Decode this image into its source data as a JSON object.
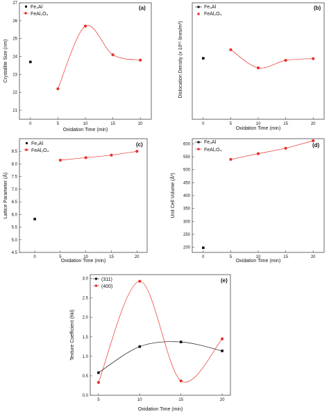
{
  "colors": {
    "black_series": "#111111",
    "red_series": "#e8302a",
    "frame": "#444444"
  },
  "chart_data": [
    {
      "panel": "(a)",
      "type": "scatter",
      "xlabel": "Oxidation Time (min)",
      "ylabel": "Crystallite Size (nm)",
      "xlim": [
        -2,
        22
      ],
      "ylim": [
        20.5,
        27
      ],
      "xticks": [
        0,
        5,
        10,
        15,
        20
      ],
      "yticks": [
        21,
        22,
        23,
        24,
        25,
        26,
        27
      ],
      "series": [
        {
          "name": "Fe₃Al",
          "color": "#111111",
          "marker": "square",
          "smooth": false,
          "x": [
            0
          ],
          "y": [
            23.7
          ]
        },
        {
          "name": "FeAl₂O₄",
          "color": "#e8302a",
          "marker": "circle",
          "smooth": true,
          "x": [
            5,
            10,
            15,
            20
          ],
          "y": [
            22.2,
            25.7,
            24.1,
            23.8
          ]
        }
      ],
      "legend": "top-left"
    },
    {
      "panel": "(b)",
      "type": "scatter",
      "xlabel": "Oxidation Time (min)",
      "ylabel": "Dislocation Density (x 10¹⁵ lines/m²)",
      "xlim": [
        -2,
        22
      ],
      "ylim": [
        0,
        3.4
      ],
      "xticks": [
        0,
        5,
        10,
        15,
        20
      ],
      "yticks": [],
      "series": [
        {
          "name": "Fe₃Al",
          "color": "#111111",
          "marker": "square",
          "smooth": false,
          "x": [
            0
          ],
          "y": [
            1.78
          ]
        },
        {
          "name": "FeAl₂O₄",
          "color": "#e8302a",
          "marker": "circle",
          "smooth": true,
          "x": [
            5,
            10,
            15,
            20
          ],
          "y": [
            2.03,
            1.5,
            1.72,
            1.77
          ]
        }
      ],
      "legend": "top-left"
    },
    {
      "panel": "(c)",
      "type": "scatter",
      "xlabel": "Oxidation Time (min)",
      "ylabel": "Lattice Parameter (Å)",
      "xlim": [
        -3,
        22
      ],
      "ylim": [
        4.5,
        9
      ],
      "xticks": [
        0,
        5,
        10,
        15,
        20
      ],
      "yticks": [
        4.5,
        5.0,
        5.5,
        6.0,
        6.5,
        7.0,
        7.5,
        8.0,
        8.5
      ],
      "series": [
        {
          "name": "Fe₃Al",
          "color": "#111111",
          "marker": "square",
          "smooth": false,
          "x": [
            0
          ],
          "y": [
            5.82
          ]
        },
        {
          "name": "FeAl₂O₄",
          "color": "#e8302a",
          "marker": "circle",
          "smooth": true,
          "x": [
            5,
            10,
            15,
            20
          ],
          "y": [
            8.15,
            8.25,
            8.35,
            8.5
          ]
        }
      ],
      "legend": "top-left"
    },
    {
      "panel": "(d)",
      "type": "line",
      "xlabel": "Oxidation Time (min)",
      "ylabel": "Unit Cell Volume (Å³)",
      "xlim": [
        -2,
        22
      ],
      "ylim": [
        180,
        620
      ],
      "xticks": [
        0,
        5,
        10,
        15,
        20
      ],
      "yticks": [
        200,
        250,
        300,
        350,
        400,
        450,
        500,
        550,
        600
      ],
      "series": [
        {
          "name": "Fe₃Al",
          "color": "#111111",
          "marker": "square",
          "smooth": false,
          "x": [
            0
          ],
          "y": [
            198
          ]
        },
        {
          "name": "FeAl₂O₄",
          "color": "#e8302a",
          "marker": "circle",
          "smooth": false,
          "x": [
            5,
            10,
            15,
            20
          ],
          "y": [
            540,
            562,
            583,
            612
          ]
        }
      ],
      "legend": "top-left"
    },
    {
      "panel": "(e)",
      "type": "scatter",
      "xlabel": "Oxidation Time (min)",
      "ylabel": "Texture Coefficient (hkl)",
      "xlim": [
        4,
        21
      ],
      "ylim": [
        0,
        3.1
      ],
      "xticks": [
        5,
        10,
        15,
        20
      ],
      "yticks": [
        0.0,
        0.5,
        1.0,
        1.5,
        2.0,
        2.5,
        3.0
      ],
      "series": [
        {
          "name": "(311)",
          "color": "#111111",
          "marker": "square",
          "smooth": true,
          "x": [
            5,
            10,
            15,
            20
          ],
          "y": [
            0.58,
            1.25,
            1.37,
            1.14
          ]
        },
        {
          "name": "(400)",
          "color": "#e8302a",
          "marker": "circle",
          "smooth": true,
          "x": [
            5,
            10,
            15,
            20
          ],
          "y": [
            0.33,
            2.93,
            0.37,
            1.45
          ]
        }
      ],
      "legend": "top-left"
    }
  ]
}
